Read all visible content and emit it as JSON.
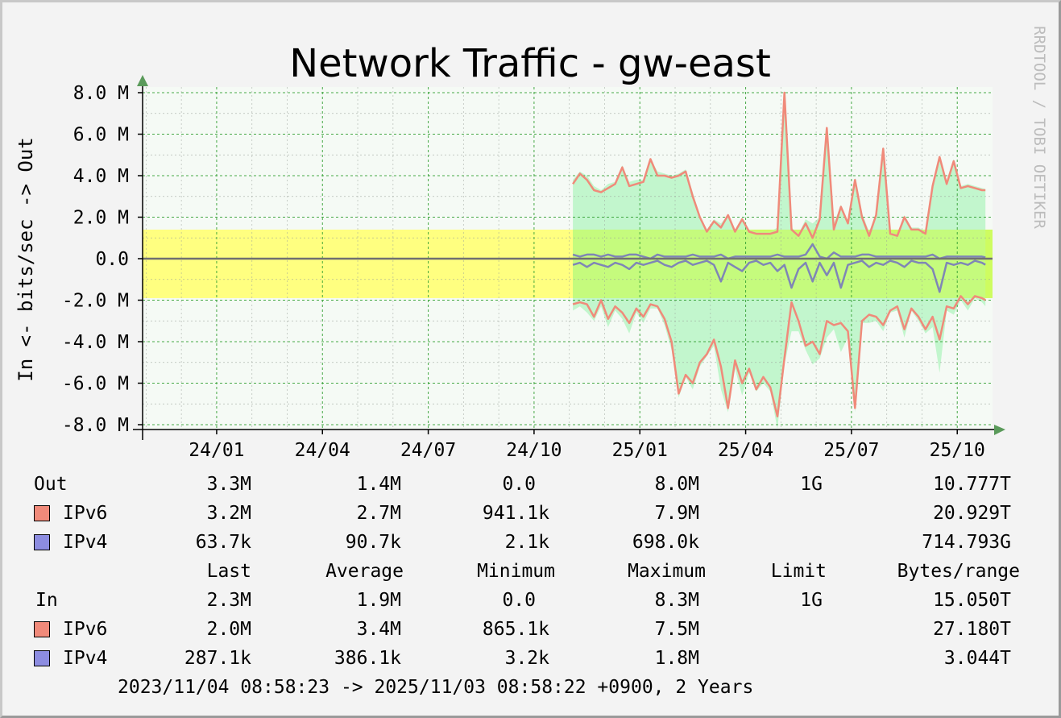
{
  "window": {
    "title": "Network Traffic - gw-east",
    "watermark": "RRDTOOL / TOBI OETIKER"
  },
  "colors": {
    "background": "#f3f3f3",
    "canvas": "#f5faf5",
    "grid": "#3fae3f",
    "limit_band": "#ffff80",
    "total_area": "#b8f5c6",
    "ipv6": "#f08a7a",
    "ipv4": "#7f86b6",
    "baseline": "#707070",
    "arrow": "#5a9a5a"
  },
  "legend": {
    "headers": [
      "Last",
      "Average",
      "Minimum",
      "Maximum",
      "Limit",
      "Bytes/range"
    ],
    "out": {
      "label": "Out",
      "total": [
        "3.3M",
        "1.4M",
        "0.0",
        "8.0M",
        "1G",
        "10.777T"
      ],
      "rows": [
        {
          "name": "IPv6",
          "color": "#f08a7a",
          "values": [
            "3.2M",
            "2.7M",
            "941.1k",
            "7.9M",
            "",
            "20.929T"
          ]
        },
        {
          "name": "IPv4",
          "color": "#8c8ce0",
          "values": [
            "63.7k",
            "90.7k",
            "2.1k",
            "698.0k",
            "",
            "714.793G"
          ]
        }
      ]
    },
    "in": {
      "label": "In",
      "total": [
        "2.3M",
        "1.9M",
        "0.0",
        "8.3M",
        "1G",
        "15.050T"
      ],
      "rows": [
        {
          "name": "IPv6",
          "color": "#f08a7a",
          "values": [
            "2.0M",
            "3.4M",
            "865.1k",
            "7.5M",
            "",
            "27.180T"
          ]
        },
        {
          "name": "IPv4",
          "color": "#8c8ce0",
          "values": [
            "287.1k",
            "386.1k",
            "3.2k",
            "1.8M",
            "",
            "3.044T"
          ]
        }
      ]
    },
    "footer": "2023/11/04 08:58:23 -> 2025/11/03 08:58:22 +0900, 2 Years"
  },
  "chart_data": {
    "type": "area",
    "title": "Network Traffic - gw-east",
    "ylabel": "In <- bits/sec -> Out",
    "ylim": [
      -8.3,
      8.0
    ],
    "y_ticks": [
      "8.0 M",
      "6.0 M",
      "4.0 M",
      "2.0 M",
      "0.0",
      "-2.0 M",
      "-4.0 M",
      "-6.0 M",
      "-8.0 M"
    ],
    "y_tick_values": [
      8,
      6,
      4,
      2,
      0,
      -2,
      -4,
      -6,
      -8
    ],
    "x_ticks": [
      "24/01",
      "24/04",
      "24/07",
      "24/10",
      "25/01",
      "25/04",
      "25/07",
      "25/10"
    ],
    "x_tick_months": [
      2,
      5,
      8,
      11,
      14,
      17,
      20,
      23
    ],
    "xlim_months": [
      -0.1,
      24.0
    ],
    "limit_band": {
      "out": 1.4,
      "in": -1.9
    },
    "units": "M bits/sec",
    "grid": true,
    "x_months": [
      12.1,
      12.3,
      12.5,
      12.7,
      12.9,
      13.1,
      13.3,
      13.5,
      13.7,
      13.9,
      14.1,
      14.3,
      14.5,
      14.7,
      14.9,
      15.1,
      15.3,
      15.5,
      15.7,
      15.9,
      16.1,
      16.3,
      16.5,
      16.7,
      16.9,
      17.1,
      17.3,
      17.5,
      17.7,
      17.9,
      18.1,
      18.3,
      18.5,
      18.7,
      18.9,
      19.1,
      19.3,
      19.5,
      19.7,
      19.9,
      20.1,
      20.3,
      20.5,
      20.7,
      20.9,
      21.1,
      21.3,
      21.5,
      21.7,
      21.9,
      22.1,
      22.3,
      22.5,
      22.7,
      22.9,
      23.1,
      23.3,
      23.5,
      23.7,
      23.8
    ],
    "series": [
      {
        "name": "IPv6",
        "direction": "out",
        "color": "#f08a7a",
        "values": [
          3.6,
          4.1,
          3.8,
          3.3,
          3.2,
          3.4,
          3.6,
          4.4,
          3.5,
          3.6,
          3.7,
          4.8,
          4.0,
          4.0,
          3.9,
          4.0,
          4.2,
          3.0,
          2.0,
          1.3,
          1.8,
          1.5,
          2.1,
          1.3,
          1.9,
          1.3,
          1.2,
          1.2,
          1.2,
          1.3,
          8.0,
          1.4,
          1.1,
          1.7,
          1.0,
          1.9,
          6.3,
          1.4,
          2.5,
          1.7,
          3.8,
          2.0,
          1.1,
          2.1,
          5.3,
          1.2,
          1.1,
          2.0,
          1.4,
          1.4,
          1.2,
          3.5,
          4.9,
          3.6,
          4.7,
          3.4,
          3.5,
          3.4,
          3.3,
          3.3
        ]
      },
      {
        "name": "IPv4",
        "direction": "out",
        "color": "#7f86b6",
        "values": [
          0.2,
          0.1,
          0.2,
          0.2,
          0.1,
          0.2,
          0.1,
          0.1,
          0.2,
          0.2,
          0.1,
          0.0,
          0.2,
          0.1,
          0.1,
          0.1,
          0.1,
          0.2,
          0.1,
          0.1,
          0.1,
          0.2,
          0.0,
          0.1,
          0.1,
          0.1,
          0.1,
          0.1,
          0.1,
          0.2,
          0.1,
          0.1,
          0.1,
          0.2,
          0.7,
          0.1,
          0.0,
          0.3,
          0.1,
          0.1,
          0.1,
          0.2,
          0.2,
          0.1,
          0.1,
          0.1,
          0.1,
          0.1,
          0.1,
          0.1,
          0.1,
          0.2,
          0.0,
          0.1,
          0.1,
          0.1,
          0.1,
          0.1,
          0.1,
          0.06
        ]
      },
      {
        "name": "IPv6",
        "direction": "in",
        "color": "#f08a7a",
        "values": [
          -2.2,
          -2.1,
          -2.2,
          -2.8,
          -2.0,
          -2.9,
          -2.3,
          -2.6,
          -3.1,
          -2.4,
          -2.8,
          -2.2,
          -2.3,
          -2.9,
          -4.0,
          -6.5,
          -5.6,
          -6.0,
          -5.0,
          -4.6,
          -3.9,
          -5.2,
          -7.2,
          -4.9,
          -6.0,
          -5.3,
          -6.3,
          -5.7,
          -6.2,
          -7.6,
          -4.8,
          -2.1,
          -3.0,
          -4.2,
          -4.0,
          -4.6,
          -3.0,
          -3.2,
          -3.1,
          -3.5,
          -7.2,
          -3.0,
          -2.7,
          -2.8,
          -3.2,
          -2.5,
          -2.3,
          -3.4,
          -2.4,
          -2.8,
          -3.4,
          -2.8,
          -3.9,
          -2.3,
          -2.4,
          -1.8,
          -2.2,
          -1.8,
          -1.9,
          -2.0
        ]
      },
      {
        "name": "IPv4",
        "direction": "in",
        "color": "#7f86b6",
        "values": [
          -0.3,
          -0.2,
          -0.4,
          -0.2,
          -0.3,
          -0.4,
          -0.2,
          -0.3,
          -0.5,
          -0.2,
          -0.3,
          -0.2,
          -0.1,
          -0.3,
          -0.4,
          -0.2,
          -0.1,
          -0.3,
          -0.2,
          -0.1,
          -0.3,
          -1.1,
          -0.2,
          -0.4,
          -0.6,
          -0.2,
          -0.1,
          -0.3,
          -0.2,
          -0.6,
          -0.3,
          -1.4,
          -0.5,
          -0.2,
          -1.1,
          -0.2,
          -0.8,
          -0.2,
          -1.4,
          -0.3,
          -0.2,
          -0.1,
          -0.4,
          -0.2,
          -0.3,
          -0.1,
          -0.2,
          -0.4,
          -0.1,
          -0.2,
          -0.2,
          -0.5,
          -1.6,
          -0.2,
          -0.3,
          -0.2,
          -0.3,
          -0.1,
          -0.2,
          -0.29
        ]
      }
    ]
  }
}
